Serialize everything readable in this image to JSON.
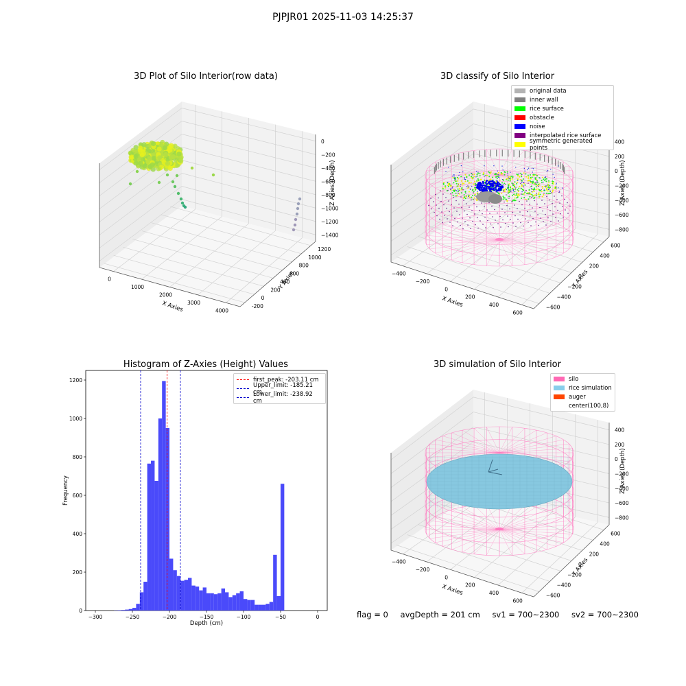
{
  "suptitle": "PJPJR01 2025-11-03 14:25:37",
  "panel1": {
    "title": "3D Plot of Silo Interior(row data)",
    "xlabel": "X Axies",
    "ylabel": "Y Axies",
    "zlabel": "Z Axies (Depth)",
    "xticks": [
      "0",
      "1000",
      "2000",
      "3000",
      "4000"
    ],
    "yticks": [
      "-200",
      "0",
      "200",
      "400",
      "600",
      "800",
      "1000",
      "1200"
    ],
    "zticks": [
      "0",
      "−200",
      "−400",
      "−600",
      "−800",
      "−1000",
      "−1200",
      "−1400"
    ]
  },
  "panel2": {
    "title": "3D classify of Silo Interior",
    "xlabel": "X Axies",
    "ylabel": "Y Axies",
    "zlabel": "Z Axies (Depth)",
    "xticks": [
      "−400",
      "−200",
      "0",
      "200",
      "400",
      "600"
    ],
    "yticks": [
      "−600",
      "−400",
      "−200",
      "0",
      "200",
      "400",
      "600"
    ],
    "zticks": [
      "400",
      "200",
      "0",
      "−200",
      "−400",
      "−600",
      "−800"
    ],
    "legend": [
      {
        "label": "original data",
        "color": "#b3b3b3"
      },
      {
        "label": "inner wall",
        "color": "#808080"
      },
      {
        "label": "rice surface",
        "color": "#00ff00"
      },
      {
        "label": "obstacle",
        "color": "#ff0000"
      },
      {
        "label": "noise",
        "color": "#0000ff"
      },
      {
        "label": "interpolated rice surface",
        "color": "#800080"
      },
      {
        "label": "symmetric generated points",
        "color": "#ffff00"
      }
    ]
  },
  "panel3": {
    "title": "Histogram of Z-Axies (Height) Values",
    "xlabel": "Depth (cm)",
    "ylabel": "Frequency",
    "legend": [
      {
        "label": "first_peak: -203.11 cm",
        "color": "#ff0000"
      },
      {
        "label": "Upper_limit: -185.21 cm",
        "color": "#0000cc"
      },
      {
        "label": "Lower_limit: -238.92 cm",
        "color": "#0000cc"
      }
    ]
  },
  "panel4": {
    "title": "3D simulation of Silo Interior",
    "xlabel": "X Axies",
    "ylabel": "Y Axies",
    "zlabel": "Z Axies (Depth)",
    "xticks": [
      "−400",
      "−200",
      "0",
      "200",
      "400",
      "600"
    ],
    "yticks": [
      "−600",
      "−400",
      "−200",
      "0",
      "200",
      "400",
      "600"
    ],
    "zticks": [
      "400",
      "200",
      "0",
      "−200",
      "−400",
      "−600",
      "−800"
    ],
    "legend": [
      {
        "label": "silo",
        "color": "#ff69b4"
      },
      {
        "label": "rice simulation",
        "color": "#87ceeb"
      },
      {
        "label": "auger",
        "color": "#ff4500"
      },
      {
        "label": "center(100,8)",
        "color": "#ffffff"
      }
    ]
  },
  "status": {
    "flag": "flag = 0",
    "avg": "avgDepth = 201 cm",
    "sv1": "sv1 = 700~2300",
    "sv2": "sv2 = 700~2300"
  },
  "chart_data": [
    {
      "type": "scatter",
      "title": "3D Plot of Silo Interior(row data)",
      "xlabel": "X Axies",
      "ylabel": "Y Axies",
      "zlabel": "Z Axies (Depth)",
      "xlim": [
        -400,
        4500
      ],
      "ylim": [
        -250,
        1250
      ],
      "zlim": [
        -1500,
        100
      ],
      "note_series": "dense yellow-green cluster near x≈0, z≈-300; sparse trail of points toward x≈4000, z≈-1300"
    },
    {
      "type": "scatter",
      "title": "3D classify of Silo Interior",
      "xlabel": "X Axies",
      "ylabel": "Y Axies",
      "zlabel": "Z Axies (Depth)",
      "xlim": [
        -500,
        700
      ],
      "ylim": [
        -700,
        700
      ],
      "zlim": [
        -900,
        450
      ],
      "legend": [
        "original data",
        "inner wall",
        "rice surface",
        "obstacle",
        "noise",
        "interpolated rice surface",
        "symmetric generated points"
      ]
    },
    {
      "type": "bar",
      "title": "Histogram of Z-Axies (Height) Values",
      "xlabel": "Depth (cm)",
      "ylabel": "Frequency",
      "xlim": [
        -313,
        13
      ],
      "ylim": [
        0,
        1250
      ],
      "xticks": [
        -300,
        -250,
        -200,
        -150,
        -100,
        -50,
        0
      ],
      "yticks": [
        0,
        200,
        400,
        600,
        800,
        1000,
        1200
      ],
      "bin_width": 5,
      "bin_starts": [
        -275,
        -270,
        -265,
        -260,
        -255,
        -250,
        -245,
        -240,
        -235,
        -230,
        -225,
        -220,
        -215,
        -210,
        -205,
        -200,
        -195,
        -190,
        -185,
        -180,
        -175,
        -170,
        -165,
        -160,
        -155,
        -150,
        -145,
        -140,
        -135,
        -130,
        -125,
        -120,
        -115,
        -110,
        -105,
        -100,
        -95,
        -90,
        -85,
        -80,
        -75,
        -70,
        -65,
        -60,
        -55,
        -50,
        -45,
        -40,
        -35,
        -30,
        -25,
        -20,
        -15,
        -10,
        -5
      ],
      "values": [
        1,
        2,
        3,
        5,
        8,
        14,
        35,
        95,
        150,
        765,
        780,
        675,
        1000,
        1195,
        950,
        270,
        210,
        180,
        155,
        160,
        170,
        130,
        125,
        105,
        120,
        90,
        90,
        85,
        90,
        115,
        95,
        70,
        80,
        90,
        100,
        60,
        55,
        55,
        30,
        30,
        30,
        35,
        45,
        290,
        75,
        660,
        0,
        0,
        0,
        0,
        0,
        0,
        0,
        0,
        0
      ],
      "vlines": [
        {
          "name": "first_peak",
          "x": -203.11,
          "color": "#ff0000"
        },
        {
          "name": "Upper_limit",
          "x": -185.21,
          "color": "#0000cc"
        },
        {
          "name": "Lower_limit",
          "x": -238.92,
          "color": "#0000cc"
        }
      ],
      "legend_position": "top-right"
    },
    {
      "type": "surface",
      "title": "3D simulation of Silo Interior",
      "xlabel": "X Axies",
      "ylabel": "Y Axies",
      "zlabel": "Z Axies (Depth)",
      "xlim": [
        -500,
        700
      ],
      "ylim": [
        -700,
        700
      ],
      "zlim": [
        -900,
        450
      ],
      "legend": [
        "silo",
        "rice simulation",
        "auger",
        "center(100,8)"
      ]
    }
  ]
}
